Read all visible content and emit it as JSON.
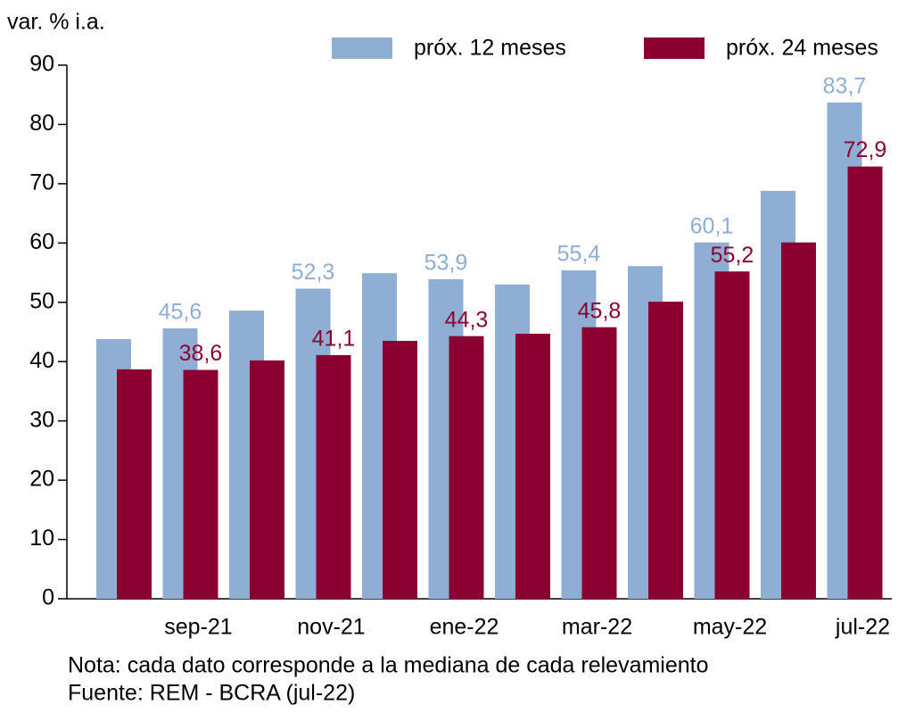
{
  "chart_data": {
    "type": "bar",
    "y_label": "var. % i.a.",
    "categories": [
      null,
      "sep-21",
      null,
      "nov-21",
      null,
      "ene-22",
      null,
      "mar-22",
      null,
      "may-22",
      null,
      "jul-22"
    ],
    "series": [
      {
        "name": "próx. 12 meses",
        "color": "#8eaed3",
        "values": [
          43.8,
          45.6,
          48.6,
          52.3,
          54.9,
          53.9,
          53.0,
          55.4,
          56.1,
          60.1,
          68.8,
          83.7
        ],
        "value_labels": [
          null,
          "45,6",
          null,
          "52,3",
          null,
          "53,9",
          null,
          "55,4",
          null,
          "60,1",
          null,
          "83,7"
        ]
      },
      {
        "name": "próx. 24 meses",
        "color": "#8b0030",
        "values": [
          38.7,
          38.6,
          40.2,
          41.1,
          43.5,
          44.3,
          44.7,
          45.8,
          50.1,
          55.2,
          60.1,
          72.9
        ],
        "value_labels": [
          null,
          "38,6",
          null,
          "41,1",
          null,
          "44,3",
          null,
          "45,8",
          null,
          "55,2",
          null,
          "72,9"
        ]
      }
    ],
    "ylim": [
      0,
      90
    ],
    "yticks": [
      0,
      10,
      20,
      30,
      40,
      50,
      60,
      70,
      80,
      90
    ],
    "notes": [
      "Nota: cada dato corresponde a la mediana de cada relevamiento",
      "Fuente: REM - BCRA (jul-22)"
    ]
  }
}
